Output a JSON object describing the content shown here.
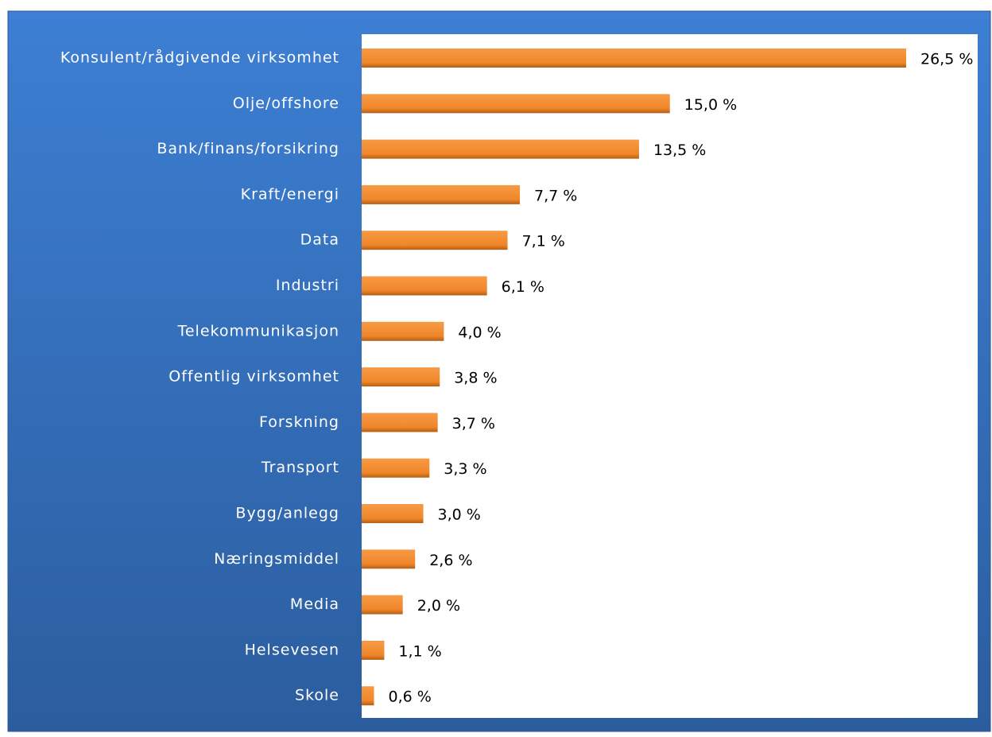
{
  "chart_data": {
    "type": "bar",
    "orientation": "horizontal",
    "categories": [
      "Konsulent/rådgivende virksomhet",
      "Olje/offshore",
      "Bank/finans/forsikring",
      "Kraft/energi",
      "Data",
      "Industri",
      "Telekommunikasjon",
      "Offentlig virksomhet",
      "Forskning",
      "Transport",
      "Bygg/anlegg",
      "Næringsmiddel",
      "Media",
      "Helsevesen",
      "Skole"
    ],
    "values": [
      26.5,
      15.0,
      13.5,
      7.7,
      7.1,
      6.1,
      4.0,
      3.8,
      3.7,
      3.3,
      3.0,
      2.6,
      2.0,
      1.1,
      0.6
    ],
    "value_labels": [
      "26,5 %",
      "15,0 %",
      "13,5 %",
      "7,7 %",
      "7,1 %",
      "6,1 %",
      "4,0 %",
      "3,8 %",
      "3,7 %",
      "3,3 %",
      "3,0 %",
      "2,6 %",
      "2,0 %",
      "1,1 %",
      "0,6 %"
    ],
    "color": "#f0862a"
  }
}
